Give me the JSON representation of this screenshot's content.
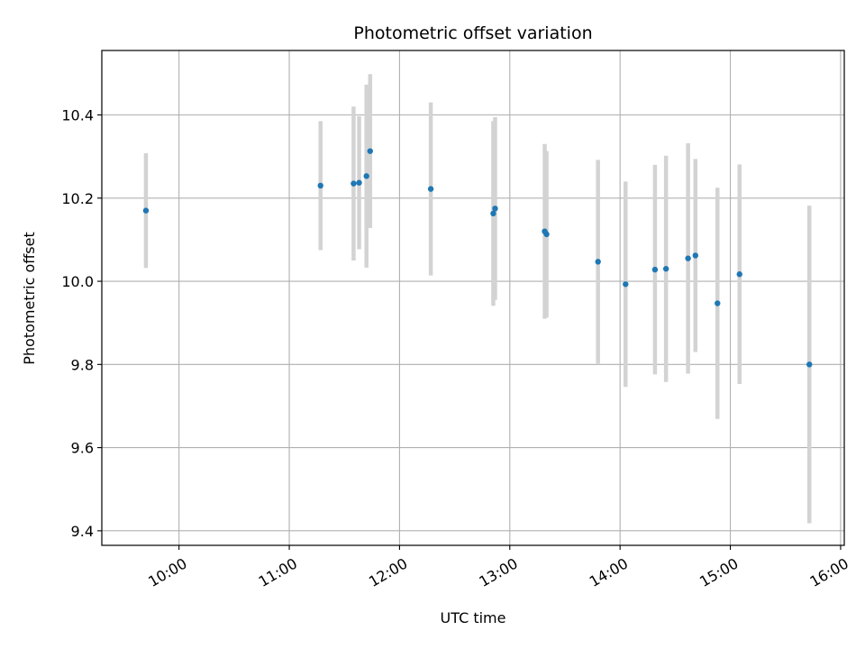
{
  "chart_data": {
    "type": "scatter",
    "title": "Photometric offset variation",
    "xlabel": "UTC time",
    "ylabel": "Photometric offset",
    "x_ticks": [
      "10:00",
      "11:00",
      "12:00",
      "13:00",
      "14:00",
      "15:00",
      "16:00"
    ],
    "y_ticks": [
      "9.4",
      "9.6",
      "9.8",
      "10.0",
      "10.2",
      "10.4"
    ],
    "xlim": [
      "09:18",
      "16:02"
    ],
    "ylim": [
      9.365,
      10.555
    ],
    "grid": true,
    "x_tick_rotation_deg": 30,
    "colors": {
      "point": "#1f77b4",
      "errorbar": "#d3d3d3",
      "grid": "#b0b0b0",
      "axes": "#000000"
    },
    "series": [
      {
        "points": [
          {
            "x": "09:42",
            "y": 10.17,
            "err": 0.138
          },
          {
            "x": "11:17",
            "y": 10.23,
            "err": 0.155
          },
          {
            "x": "11:35",
            "y": 10.235,
            "err": 0.185
          },
          {
            "x": "11:38",
            "y": 10.237,
            "err": 0.16
          },
          {
            "x": "11:42",
            "y": 10.253,
            "err": 0.22
          },
          {
            "x": "11:44",
            "y": 10.313,
            "err": 0.185
          },
          {
            "x": "12:17",
            "y": 10.222,
            "err": 0.208
          },
          {
            "x": "12:51",
            "y": 10.163,
            "err": 0.222
          },
          {
            "x": "12:52",
            "y": 10.175,
            "err": 0.22
          },
          {
            "x": "13:19",
            "y": 10.12,
            "err": 0.21
          },
          {
            "x": "13:20",
            "y": 10.113,
            "err": 0.2
          },
          {
            "x": "13:48",
            "y": 10.047,
            "err": 0.245
          },
          {
            "x": "14:03",
            "y": 9.993,
            "err": 0.247
          },
          {
            "x": "14:19",
            "y": 10.028,
            "err": 0.252
          },
          {
            "x": "14:25",
            "y": 10.03,
            "err": 0.272
          },
          {
            "x": "14:37",
            "y": 10.055,
            "err": 0.277
          },
          {
            "x": "14:41",
            "y": 10.062,
            "err": 0.232
          },
          {
            "x": "14:53",
            "y": 9.947,
            "err": 0.278
          },
          {
            "x": "15:05",
            "y": 10.017,
            "err": 0.264
          },
          {
            "x": "15:43",
            "y": 9.8,
            "err": 0.382
          }
        ]
      }
    ]
  }
}
